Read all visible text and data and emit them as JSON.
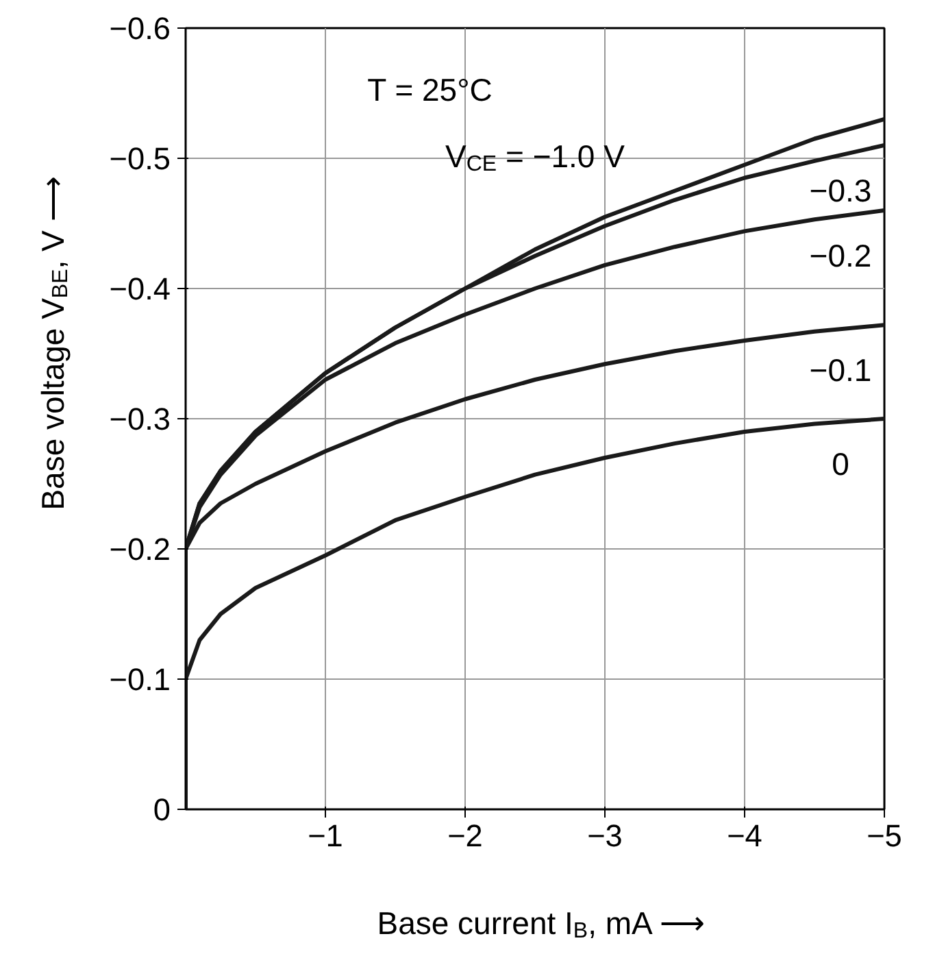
{
  "chart_data": {
    "type": "line",
    "xlabel": "Base current I$_{B}$, mA ⟶",
    "ylabel": "Base voltage V$_{BE}$, V ⟶",
    "xlim": [
      0,
      -5
    ],
    "ylim": [
      0,
      -0.6
    ],
    "xticks": [
      {
        "value": -1,
        "label": "−1"
      },
      {
        "value": -2,
        "label": "−2"
      },
      {
        "value": -3,
        "label": "−3"
      },
      {
        "value": -4,
        "label": "−4"
      },
      {
        "value": -5,
        "label": "−5"
      }
    ],
    "yticks": [
      0,
      {
        "value": -0.1,
        "label": "−0.1"
      },
      {
        "value": -0.2,
        "label": "−0.2"
      },
      {
        "value": -0.3,
        "label": "−0.3"
      },
      {
        "value": -0.4,
        "label": "−0.4"
      },
      {
        "value": -0.5,
        "label": "−0.5"
      },
      {
        "value": -0.6,
        "label": "−0.6"
      }
    ],
    "grid": true,
    "legend": false,
    "marker": "none",
    "line_style": "solid",
    "x": [
      0,
      0,
      -0.1,
      -0.25,
      -0.5,
      -1,
      -1.5,
      -2,
      -2.5,
      -3,
      -3.5,
      -4,
      -4.5,
      -5
    ],
    "series": [
      {
        "name": "V$_{CE}$ = −1.0 V",
        "color": "#1a1a1a",
        "values": [
          0,
          -0.2,
          -0.235,
          -0.26,
          -0.29,
          -0.335,
          -0.37,
          -0.4,
          -0.43,
          -0.455,
          -0.475,
          -0.495,
          -0.515,
          -0.53
        ]
      },
      {
        "name": "−0.3",
        "color": "#1a1a1a",
        "values": [
          0,
          -0.2,
          -0.235,
          -0.26,
          -0.29,
          -0.335,
          -0.37,
          -0.4,
          -0.425,
          -0.448,
          -0.468,
          -0.485,
          -0.498,
          -0.51
        ]
      },
      {
        "name": "−0.2",
        "color": "#1a1a1a",
        "values": [
          0,
          -0.2,
          -0.232,
          -0.257,
          -0.287,
          -0.33,
          -0.358,
          -0.38,
          -0.4,
          -0.418,
          -0.432,
          -0.444,
          -0.453,
          -0.46
        ]
      },
      {
        "name": "−0.1",
        "color": "#1a1a1a",
        "values": [
          0,
          -0.2,
          -0.22,
          -0.235,
          -0.25,
          -0.275,
          -0.297,
          -0.315,
          -0.33,
          -0.342,
          -0.352,
          -0.36,
          -0.367,
          -0.372
        ]
      },
      {
        "name": "0",
        "color": "#1a1a1a",
        "values": [
          0,
          -0.1,
          -0.13,
          -0.15,
          -0.17,
          -0.195,
          -0.222,
          -0.24,
          -0.257,
          -0.27,
          -0.281,
          -0.29,
          -0.296,
          -0.3
        ]
      }
    ],
    "annotations": [
      "T = 25°C"
    ]
  }
}
